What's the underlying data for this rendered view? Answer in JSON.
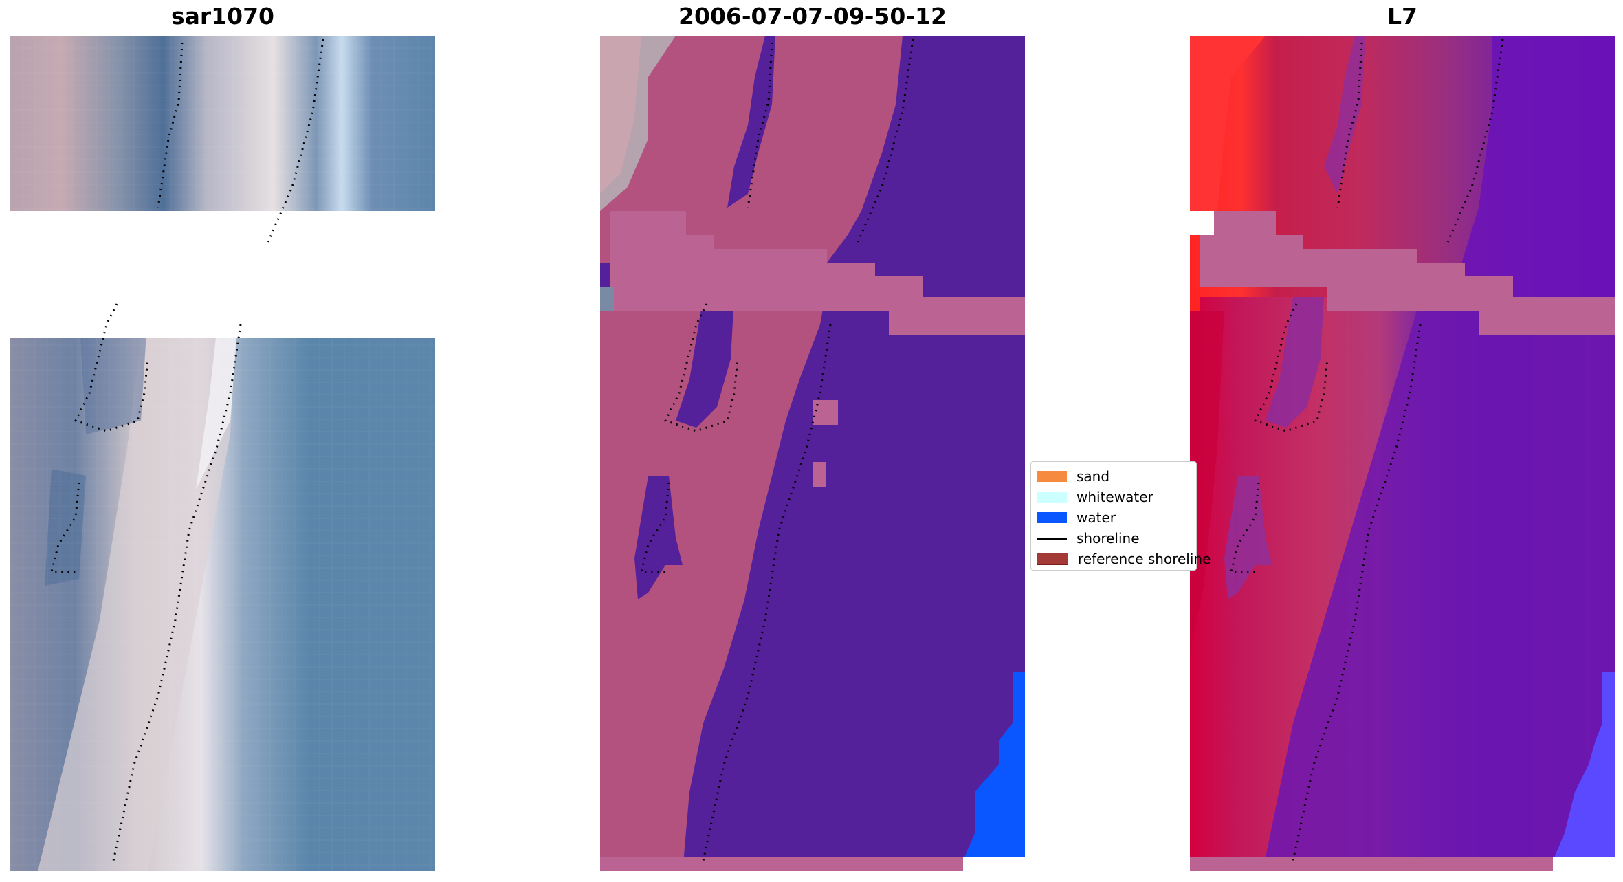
{
  "panels": {
    "left": {
      "title": "sar1070"
    },
    "middle": {
      "title": "2006-07-07-09-50-12"
    },
    "right": {
      "title": "L7"
    }
  },
  "legend": {
    "items": [
      {
        "label": "sand",
        "kind": "patch",
        "color": "#f68b3f"
      },
      {
        "label": "whitewater",
        "kind": "patch",
        "color": "#ccffff"
      },
      {
        "label": "water",
        "kind": "patch",
        "color": "#0a57ff"
      },
      {
        "label": "shoreline",
        "kind": "line",
        "color": "#000000"
      },
      {
        "label": "reference shoreline",
        "kind": "patch",
        "color": "#a33a36"
      }
    ]
  },
  "colors": {
    "sea_rgb": "#5b86ab",
    "sand_rgb": "#d9d3d6",
    "land_rgb": "#8a93a8",
    "water_class": "#55219a",
    "land_class": "#b3527f",
    "band_class": "#bb6494",
    "deep_water": "#0a57ff",
    "ndwi_high": "#ff2020",
    "ndwi_low": "#6c16b0",
    "shoreline": "#000000",
    "no_data": "#ffffff"
  }
}
